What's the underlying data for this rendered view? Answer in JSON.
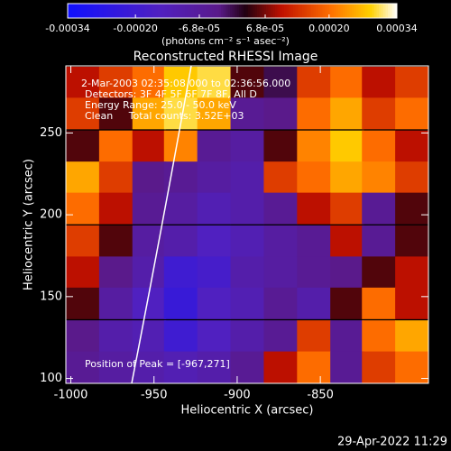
{
  "chart_data": {
    "type": "heatmap",
    "title": "Reconstructed RHESSI Image",
    "xlabel": "Heliocentric X (arcsec)",
    "ylabel": "Heliocentric Y (arcsec)",
    "colorbar_label": "(photons cm⁻² s⁻¹ asec⁻²)",
    "clim": [
      -0.00034,
      0.00034
    ],
    "cticks": [
      -0.00034,
      {
        "value": -0.0002,
        "label": "-0.00020"
      },
      {
        "value": -6.8e-05,
        "label": "-6.8e-05"
      },
      {
        "value": 6.8e-05,
        "label": "6.8e-05"
      },
      {
        "value": 0.0002,
        "label": "0.00020"
      },
      0.00034
    ],
    "annotations": [
      "2-Mar-2003 02:35:08.000 to 02:36:56.000",
      "Detectors: 3F 4F 5F 6F 7F 8F, All D",
      "Energy Range: 25.0 - 50.0 keV",
      "Clean     Total counts: 3.52E+03",
      "Position of Peak = [-967,271]"
    ],
    "footer": "29-Apr-2022 11:29",
    "xlim": [
      -1003,
      -785
    ],
    "ylim": [
      97,
      291
    ],
    "xticks": [
      -1000,
      -950,
      -900,
      -850
    ],
    "yticks": [
      100,
      150,
      200,
      250
    ],
    "x": [
      -993,
      -973,
      -953,
      -934,
      -914,
      -894,
      -874,
      -854,
      -834,
      -815,
      -795
    ],
    "y": [
      281,
      262,
      242,
      223,
      204,
      184,
      165,
      146,
      126,
      107
    ],
    "values": [
      [
        0.0001,
        0.00015,
        0.0002,
        0.00028,
        0.0003,
        5e-05,
        0,
        0.00015,
        0.0002,
        0.0001,
        0.00015
      ],
      [
        0.00015,
        5e-05,
        0.00025,
        0.0003,
        0.00025,
        -5e-05,
        -3e-05,
        0.0002,
        0.00025,
        0.00015,
        0.0002
      ],
      [
        5e-05,
        0.0002,
        0.0001,
        0.00022,
        -5e-05,
        -8e-05,
        5e-05,
        0.00022,
        0.00028,
        0.0002,
        0.0001
      ],
      [
        0.00025,
        0.00015,
        -3e-05,
        -5e-05,
        -8e-05,
        -0.0001,
        0.00015,
        0.0002,
        0.00025,
        0.00022,
        0.00015
      ],
      [
        0.0002,
        0.0001,
        -5e-05,
        -8e-05,
        -0.00012,
        -0.0001,
        -5e-05,
        0.0001,
        0.00015,
        -5e-05,
        5e-05
      ],
      [
        0.00015,
        5e-05,
        -8e-05,
        -0.0001,
        -0.00015,
        -0.00012,
        -8e-05,
        -5e-05,
        0.0001,
        -5e-05,
        5e-05
      ],
      [
        0.0001,
        -3e-05,
        -0.0001,
        -0.0002,
        -0.00018,
        -0.0001,
        -8e-05,
        -5e-05,
        -3e-05,
        5e-05,
        0.0001
      ],
      [
        5e-05,
        -8e-05,
        -0.00015,
        -0.00022,
        -0.00015,
        -0.00012,
        -5e-05,
        -0.0001,
        5e-05,
        0.0002,
        0.0001
      ],
      [
        -3e-05,
        -0.0001,
        -0.00012,
        -0.0002,
        -0.00015,
        -0.0001,
        -5e-05,
        0.00015,
        -5e-05,
        0.0002,
        0.00025
      ],
      [
        -5e-05,
        -8e-05,
        -0.0001,
        -0.00012,
        -0.0001,
        -5e-05,
        0.0001,
        0.0002,
        -5e-05,
        0.00015,
        0.0002
      ]
    ]
  }
}
